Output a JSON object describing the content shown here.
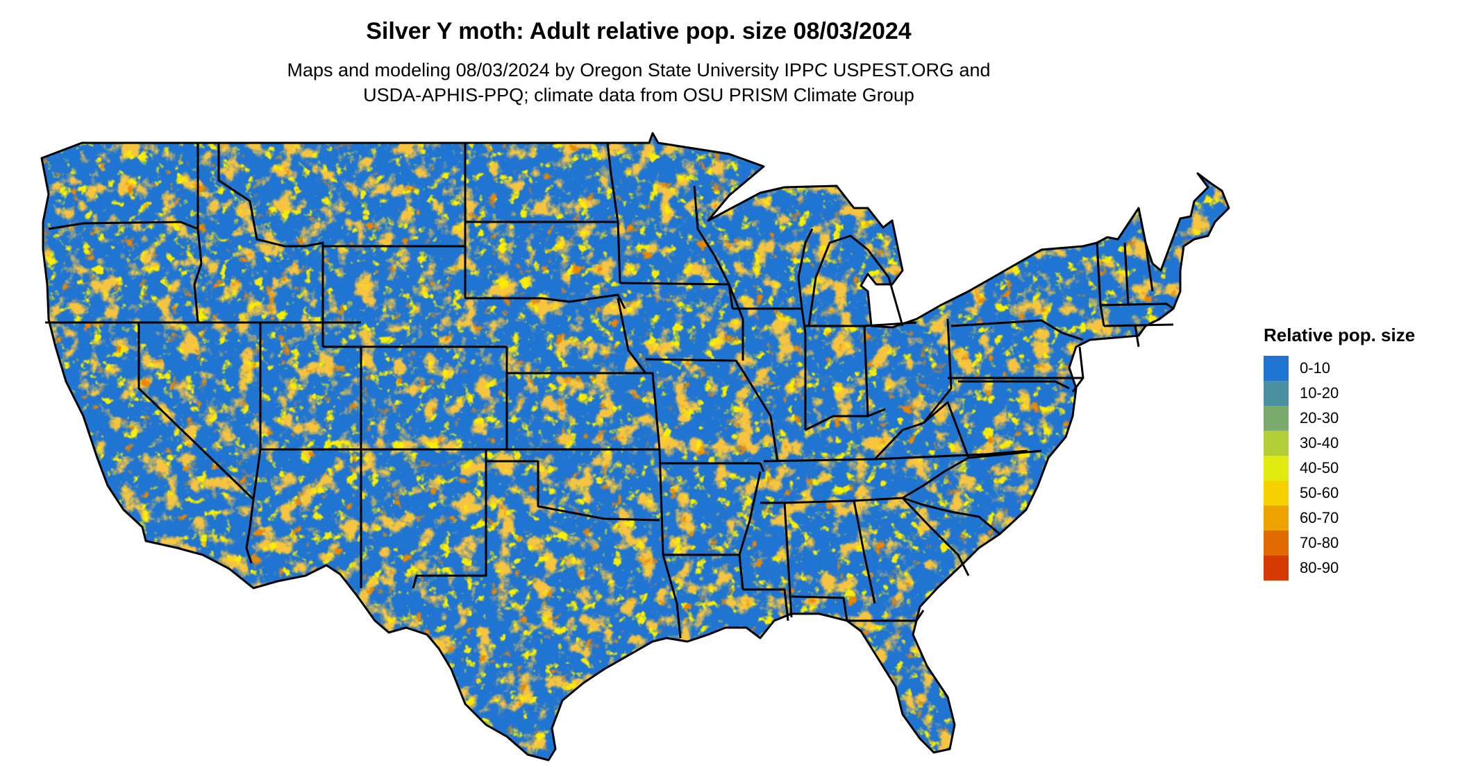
{
  "title": "Silver Y moth: Adult relative pop. size 08/03/2024",
  "subtitle_line1": "Maps and modeling 08/03/2024 by Oregon State University IPPC USPEST.ORG and",
  "subtitle_line2": "USDA-APHIS-PPQ; climate data from OSU PRISM Climate Group",
  "legend": {
    "title": "Relative pop. size",
    "items": [
      {
        "label": "0-10",
        "color": "#1f75d1"
      },
      {
        "label": "10-20",
        "color": "#4b8fa3"
      },
      {
        "label": "20-30",
        "color": "#7aaa6c"
      },
      {
        "label": "30-40",
        "color": "#b3ce36"
      },
      {
        "label": "40-50",
        "color": "#e2ea10"
      },
      {
        "label": "50-60",
        "color": "#f7d200"
      },
      {
        "label": "60-70",
        "color": "#eda200"
      },
      {
        "label": "70-80",
        "color": "#e06a00"
      },
      {
        "label": "80-90",
        "color": "#d63a00"
      }
    ]
  },
  "map": {
    "region": "Contiguous United States",
    "base_color": "#1f75d1",
    "border_color": "#000000"
  }
}
